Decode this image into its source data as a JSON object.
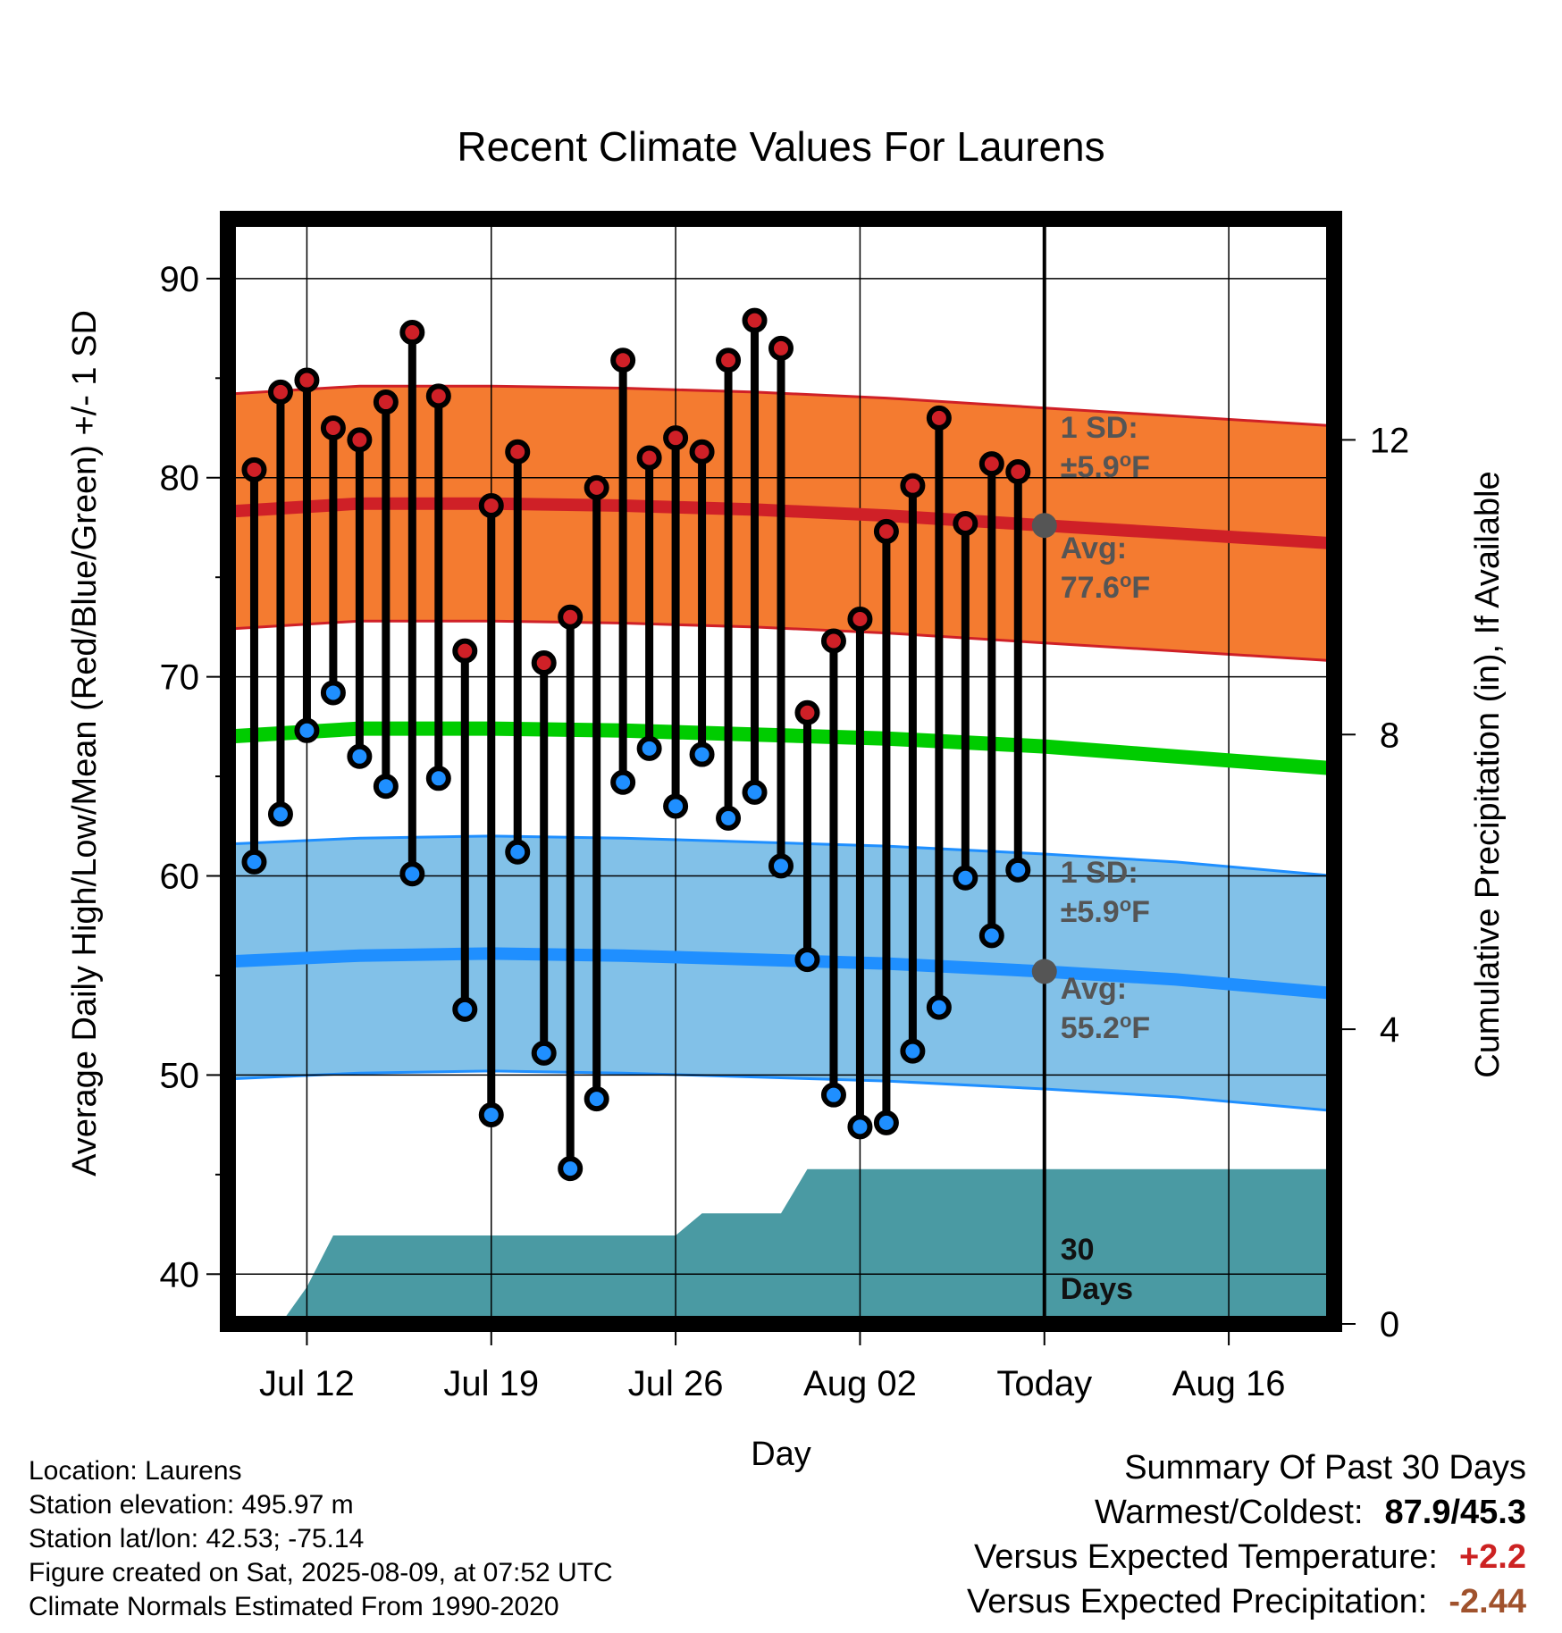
{
  "chart_data": {
    "type": "line",
    "title": "Recent Climate Values For Laurens",
    "xlabel": "Day",
    "ylabel_left": "Average Daily High/Low/Mean (Red/Blue/Green) +/- 1 SD",
    "ylabel_right": "Cumulative Precipitation (in), If Available",
    "ylim": [
      37.5,
      93
    ],
    "y_ticks": [
      40,
      50,
      60,
      70,
      80,
      90
    ],
    "y2lim": [
      0,
      15
    ],
    "y2_ticks": [
      0,
      4,
      8,
      12
    ],
    "x_range": [
      "2025-07-09",
      "2025-08-20"
    ],
    "x_ticks": [
      {
        "date": "2025-07-12",
        "label": "Jul 12"
      },
      {
        "date": "2025-07-19",
        "label": "Jul 19"
      },
      {
        "date": "2025-07-26",
        "label": "Jul 26"
      },
      {
        "date": "2025-08-02",
        "label": "Aug 02"
      },
      {
        "date": "2025-08-09",
        "label": "Today"
      },
      {
        "date": "2025-08-16",
        "label": "Aug 16"
      }
    ],
    "today": "2025-08-09",
    "grid": true,
    "dates": [
      "2025-07-10",
      "2025-07-11",
      "2025-07-12",
      "2025-07-13",
      "2025-07-14",
      "2025-07-15",
      "2025-07-16",
      "2025-07-17",
      "2025-07-18",
      "2025-07-19",
      "2025-07-20",
      "2025-07-21",
      "2025-07-22",
      "2025-07-23",
      "2025-07-24",
      "2025-07-25",
      "2025-07-26",
      "2025-07-27",
      "2025-07-28",
      "2025-07-29",
      "2025-07-30",
      "2025-07-31",
      "2025-08-01",
      "2025-08-02",
      "2025-08-03",
      "2025-08-04",
      "2025-08-05",
      "2025-08-06",
      "2025-08-07",
      "2025-08-08"
    ],
    "series": [
      {
        "key": "high",
        "values": [
          80.4,
          84.3,
          84.9,
          82.5,
          81.9,
          83.8,
          87.3,
          84.1,
          71.3,
          78.6,
          81.3,
          70.7,
          73.0,
          79.5,
          85.9,
          81.0,
          82.0,
          81.3,
          85.9,
          87.9,
          86.5,
          68.2,
          71.8,
          72.9,
          77.3,
          79.6,
          83.0,
          77.7,
          80.7,
          80.3
        ]
      },
      {
        "key": "low",
        "values": [
          60.7,
          63.1,
          67.3,
          69.2,
          66.0,
          64.5,
          60.1,
          64.9,
          53.3,
          48.0,
          61.2,
          51.1,
          45.3,
          48.8,
          64.7,
          66.4,
          63.5,
          66.1,
          62.9,
          64.2,
          60.5,
          55.8,
          49.0,
          47.4,
          47.6,
          51.2,
          53.4,
          59.9,
          57.0,
          60.3
        ]
      }
    ],
    "normals_dates": [
      "2025-07-09",
      "2025-07-14",
      "2025-07-19",
      "2025-07-24",
      "2025-07-29",
      "2025-08-03",
      "2025-08-09",
      "2025-08-14",
      "2025-08-20"
    ],
    "normals": {
      "high_avg": [
        78.3,
        78.7,
        78.7,
        78.6,
        78.4,
        78.1,
        77.6,
        77.2,
        76.7
      ],
      "low_avg": [
        55.7,
        56.0,
        56.1,
        56.0,
        55.8,
        55.6,
        55.2,
        54.8,
        54.1
      ],
      "mean_avg": [
        67.0,
        67.4,
        67.4,
        67.3,
        67.1,
        66.9,
        66.5,
        66.0,
        65.4
      ],
      "high_sd": 5.9,
      "low_sd": 5.9
    },
    "precip_cumulative": [
      0.0,
      0.0,
      0.5,
      1.2,
      1.2,
      1.2,
      1.2,
      1.2,
      1.2,
      1.2,
      1.2,
      1.2,
      1.2,
      1.2,
      1.2,
      1.2,
      1.2,
      1.5,
      1.5,
      1.5,
      1.5,
      2.1,
      2.1,
      2.1,
      2.1,
      2.1,
      2.1,
      2.1,
      2.1,
      2.1
    ],
    "precip_end": "2025-08-20",
    "annotations": {
      "high_sd": "1 SD:",
      "high_sd_value": "±5.9",
      "high_avg": "Avg:",
      "high_avg_value": "77.6",
      "low_sd": "1 SD:",
      "low_sd_value": "±5.9",
      "low_avg": "Avg:",
      "low_avg_value": "55.2",
      "degree_unit": "o",
      "deg_f": "F",
      "precip_days_number": "30",
      "precip_days_word": "Days"
    },
    "colors": {
      "high_band": "#f47b30",
      "high_line": "#cf2027",
      "low_band": "#82c1e8",
      "low_line": "#1f8fff",
      "mean_line": "#00cc00",
      "precip": "#4a9aa3",
      "high_marker": "#cf2027",
      "low_marker": "#1f8fff"
    }
  },
  "footer": {
    "location": "Location: Laurens",
    "elevation": "Station elevation: 495.97 m",
    "latlon": "Station lat/lon: 42.53; -75.14",
    "created": "Figure created on Sat, 2025-08-09, at 07:52 UTC",
    "normals": "Climate Normals Estimated From 1990-2020"
  },
  "summary": {
    "title": "Summary Of Past 30 Days",
    "warmest_label": "Warmest/Coldest:",
    "warmest_value": "87.9/45.3",
    "temp_label": "Versus Expected Temperature:",
    "temp_value": "+2.2",
    "temp_color": "#cc2222",
    "precip_label": "Versus Expected Precipitation:",
    "precip_value": "-2.44",
    "precip_color": "#a0522d"
  }
}
